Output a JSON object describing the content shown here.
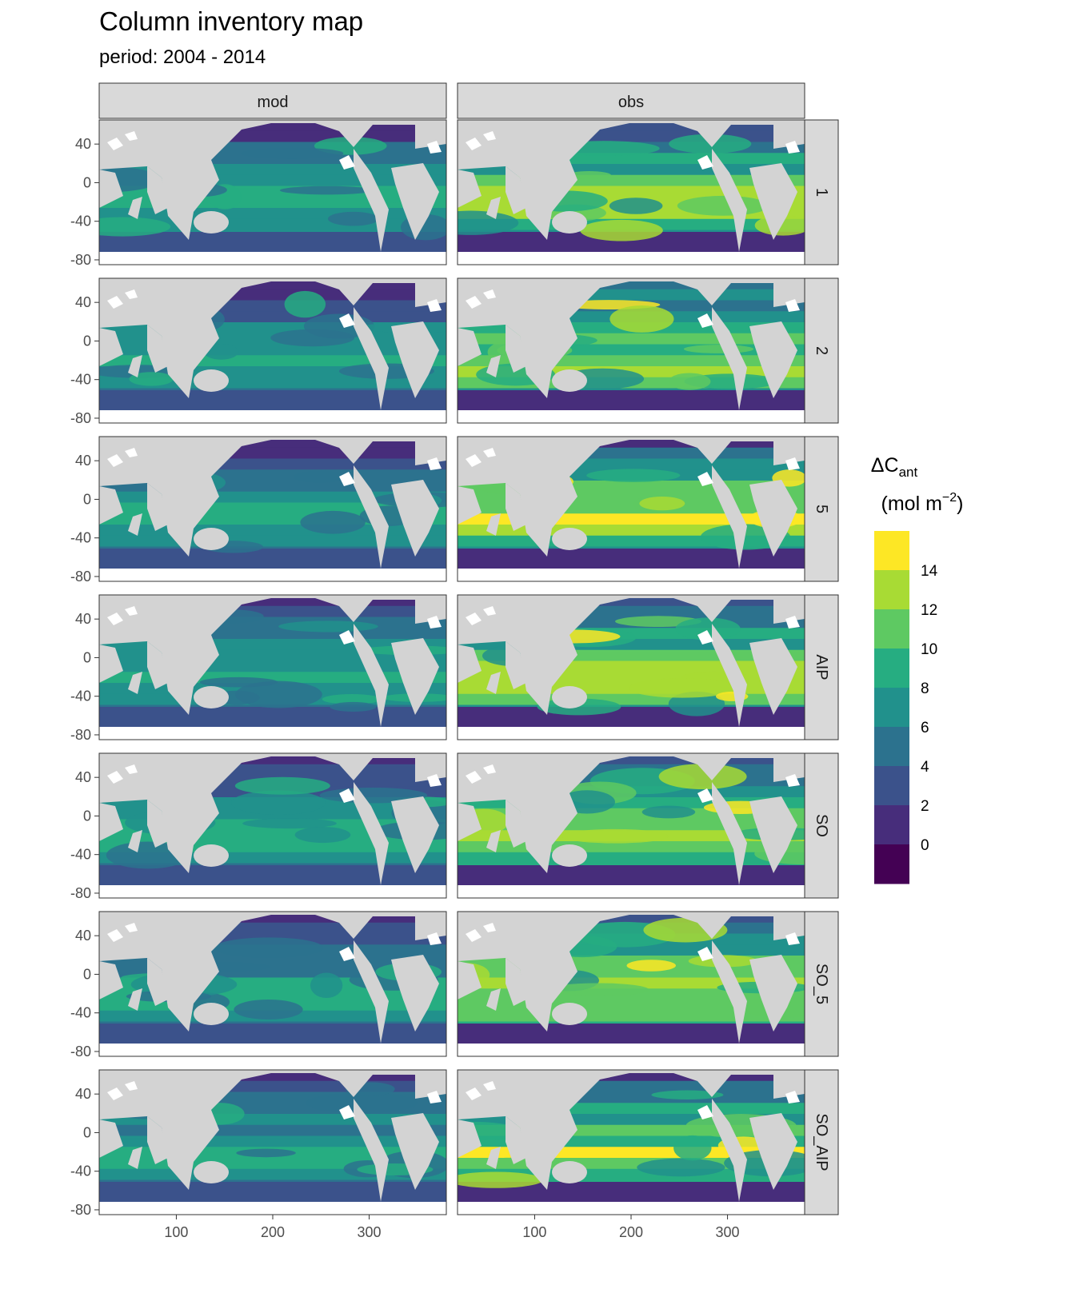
{
  "chart_data": {
    "type": "heatmap",
    "title": "Column inventory map",
    "subtitle": "period: 2004 - 2014",
    "column_facets": [
      "mod",
      "obs"
    ],
    "row_facets": [
      "1",
      "2",
      "5",
      "AIP",
      "SO",
      "SO_5",
      "SO_AIP"
    ],
    "x_ticks": [
      100,
      200,
      300
    ],
    "y_ticks": [
      40,
      0,
      -40,
      -80
    ],
    "x_range": [
      20,
      380
    ],
    "y_range": [
      -85,
      65
    ],
    "legend": {
      "title_main": "ΔC",
      "title_sub": "ant",
      "unit_open": "(mol m",
      "unit_sup": "−2",
      "unit_close": ")",
      "labels": [
        "14",
        "12",
        "10",
        "8",
        "6",
        "4",
        "2",
        "0"
      ],
      "bin_colors": [
        "#fde725",
        "#a8db34",
        "#5ec962",
        "#26ad81",
        "#21918c",
        "#2c728e",
        "#3b528b",
        "#472d7b",
        "#440154"
      ],
      "position": "right"
    },
    "land_color": "#d3d3d3",
    "ice_color": "#ffffff",
    "panels_typical_range": {
      "mod": {
        "min": 0,
        "max": 14
      },
      "obs": {
        "min": 0,
        "max": 16
      }
    }
  }
}
